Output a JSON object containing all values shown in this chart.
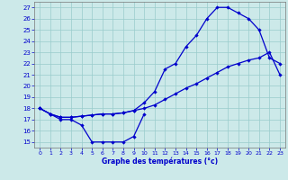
{
  "xlabel": "Graphe des températures (°c)",
  "bg_color": "#cce9e9",
  "line_color": "#0000cc",
  "grid_color": "#99cccc",
  "xlim": [
    -0.5,
    23.5
  ],
  "ylim": [
    14.5,
    27.5
  ],
  "yticks": [
    15,
    16,
    17,
    18,
    19,
    20,
    21,
    22,
    23,
    24,
    25,
    26,
    27
  ],
  "xticks": [
    0,
    1,
    2,
    3,
    4,
    5,
    6,
    7,
    8,
    9,
    10,
    11,
    12,
    13,
    14,
    15,
    16,
    17,
    18,
    19,
    20,
    21,
    22,
    23
  ],
  "line1_x": [
    0,
    1,
    2,
    3,
    4,
    5,
    6,
    7,
    8,
    9,
    10
  ],
  "line1_y": [
    18,
    17.5,
    17,
    17,
    16.5,
    15,
    15,
    15,
    15,
    15.5,
    17.5
  ],
  "line2_x": [
    0,
    1,
    2,
    3,
    4,
    5,
    6,
    7,
    8,
    9,
    10,
    11,
    12,
    13,
    14,
    15,
    16,
    17,
    18,
    19,
    20,
    21,
    22,
    23
  ],
  "line2_y": [
    18,
    17.5,
    17.2,
    17.2,
    17.3,
    17.4,
    17.5,
    17.5,
    17.6,
    17.8,
    18.0,
    18.3,
    18.8,
    19.3,
    19.8,
    20.2,
    20.7,
    21.2,
    21.7,
    22.0,
    22.3,
    22.5,
    23.0,
    21.0
  ],
  "line3_x": [
    0,
    1,
    2,
    3,
    4,
    5,
    6,
    7,
    8,
    9,
    10,
    11,
    12,
    13,
    14,
    15,
    16,
    17,
    18,
    19,
    20,
    21,
    22,
    23
  ],
  "line3_y": [
    18,
    17.5,
    17.2,
    17.2,
    17.3,
    17.4,
    17.5,
    17.5,
    17.6,
    17.8,
    18.5,
    19.5,
    21.5,
    22.0,
    23.5,
    24.5,
    26.0,
    27.0,
    27.0,
    26.5,
    26.0,
    25.0,
    22.5,
    22.0
  ]
}
